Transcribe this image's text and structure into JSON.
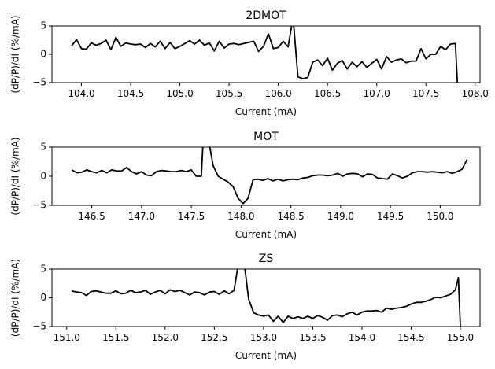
{
  "chart_data": [
    {
      "type": "line",
      "title": "2DMOT",
      "xlabel": "Current (mA)",
      "ylabel": "(dP/P)/dI (%/mA)",
      "xlim": [
        103.7,
        108.05
      ],
      "ylim": [
        -5,
        5
      ],
      "xticks": [
        104.0,
        104.5,
        105.0,
        105.5,
        106.0,
        106.5,
        107.0,
        107.5,
        108.0
      ],
      "xtick_labels": [
        "104.0",
        "104.5",
        "105.0",
        "105.5",
        "106.0",
        "106.5",
        "107.0",
        "107.5",
        "108.0"
      ],
      "yticks": [
        -5,
        0,
        5
      ],
      "ytick_labels": [
        "−5",
        "0",
        "5"
      ],
      "color": "#000000",
      "x": [
        103.9,
        103.95,
        104.0,
        104.05,
        104.1,
        104.15,
        104.2,
        104.25,
        104.3,
        104.35,
        104.4,
        104.45,
        104.5,
        104.55,
        104.6,
        104.65,
        104.7,
        104.75,
        104.8,
        104.85,
        104.9,
        104.95,
        105.0,
        105.05,
        105.1,
        105.15,
        105.2,
        105.25,
        105.3,
        105.35,
        105.4,
        105.45,
        105.5,
        105.55,
        105.6,
        105.65,
        105.7,
        105.75,
        105.8,
        105.85,
        105.9,
        105.95,
        106.0,
        106.05,
        106.1,
        106.15,
        106.2,
        106.25,
        106.3,
        106.35,
        106.4,
        106.45,
        106.5,
        106.55,
        106.6,
        106.65,
        106.7,
        106.75,
        106.8,
        106.85,
        106.9,
        106.95,
        107.0,
        107.05,
        107.1,
        107.15,
        107.2,
        107.25,
        107.3,
        107.35,
        107.4,
        107.45,
        107.5,
        107.55,
        107.6,
        107.65,
        107.7,
        107.75,
        107.8,
        107.82
      ],
      "y": [
        1.5,
        2.6,
        1.0,
        0.9,
        2.0,
        1.6,
        1.9,
        2.5,
        0.8,
        3.0,
        1.4,
        2.0,
        1.8,
        1.7,
        1.8,
        1.2,
        1.9,
        1.3,
        2.3,
        1.0,
        2.1,
        1.0,
        1.4,
        1.9,
        2.4,
        1.8,
        2.5,
        1.6,
        2.0,
        0.6,
        2.3,
        1.1,
        1.8,
        1.9,
        1.7,
        1.9,
        2.1,
        2.3,
        0.5,
        1.4,
        3.6,
        1.0,
        1.2,
        2.3,
        1.3,
        6.5,
        -4.0,
        -4.3,
        -4.1,
        -1.4,
        -1.0,
        -2.0,
        -0.7,
        -2.8,
        -1.6,
        -1.1,
        -2.6,
        -1.4,
        -2.2,
        -1.3,
        -2.3,
        -1.6,
        -0.9,
        -2.6,
        -0.4,
        -1.4,
        -1.0,
        -0.8,
        -1.5,
        -1.2,
        -1.2,
        1.0,
        -0.8,
        0.0,
        0.0,
        1.4,
        0.8,
        1.8,
        1.9,
        -5.0
      ],
      "series_points_note": ""
    },
    {
      "type": "line",
      "title": "MOT",
      "xlabel": "Current (mA)",
      "ylabel": "(dP/P)/dI (%/mA)",
      "xlim": [
        146.1,
        150.4
      ],
      "ylim": [
        -5,
        5
      ],
      "xticks": [
        146.5,
        147.0,
        147.5,
        148.0,
        148.5,
        149.0,
        149.5,
        150.0
      ],
      "xtick_labels": [
        "146.5",
        "147.0",
        "147.5",
        "148.0",
        "148.5",
        "149.0",
        "149.5",
        "150.0"
      ],
      "yticks": [
        -5,
        0,
        5
      ],
      "ytick_labels": [
        "−5",
        "0",
        "5"
      ],
      "color": "#000000",
      "x": [
        146.3,
        146.35,
        146.4,
        146.45,
        146.5,
        146.55,
        146.6,
        146.65,
        146.7,
        146.75,
        146.8,
        146.85,
        146.9,
        146.95,
        147.0,
        147.05,
        147.1,
        147.15,
        147.2,
        147.25,
        147.3,
        147.35,
        147.4,
        147.45,
        147.5,
        147.55,
        147.6,
        147.62,
        147.67,
        147.72,
        147.77,
        147.82,
        147.87,
        147.92,
        147.97,
        148.02,
        148.07,
        148.12,
        148.17,
        148.22,
        148.27,
        148.32,
        148.37,
        148.42,
        148.47,
        148.52,
        148.57,
        148.62,
        148.67,
        148.72,
        148.77,
        148.82,
        148.87,
        148.92,
        148.97,
        149.02,
        149.07,
        149.12,
        149.17,
        149.22,
        149.27,
        149.32,
        149.37,
        149.42,
        149.47,
        149.52,
        149.57,
        149.62,
        149.67,
        149.72,
        149.77,
        149.82,
        149.87,
        149.92,
        149.97,
        150.02,
        150.07,
        150.12,
        150.17,
        150.22,
        150.27
      ],
      "y": [
        1.1,
        0.6,
        0.7,
        1.1,
        0.8,
        0.6,
        1.0,
        0.6,
        1.1,
        0.9,
        0.9,
        1.5,
        0.8,
        0.4,
        0.8,
        0.2,
        0.1,
        0.8,
        1.0,
        0.9,
        0.8,
        0.8,
        1.0,
        0.8,
        1.1,
        0.0,
        0.0,
        6.5,
        6.5,
        1.8,
        0.0,
        -0.5,
        -1.0,
        -1.8,
        -3.8,
        -4.7,
        -3.8,
        -0.6,
        -0.5,
        -0.7,
        -0.4,
        -0.8,
        -0.5,
        -0.8,
        -0.6,
        -0.5,
        -0.6,
        -0.3,
        -0.2,
        0.1,
        0.2,
        0.2,
        0.1,
        0.2,
        0.5,
        0.0,
        0.4,
        0.5,
        0.4,
        -0.1,
        0.4,
        0.3,
        -0.3,
        -0.4,
        -0.5,
        0.4,
        0.1,
        -0.3,
        0.0,
        0.6,
        0.8,
        0.8,
        0.7,
        0.8,
        0.7,
        0.6,
        0.8,
        0.5,
        0.8,
        1.2,
        2.9
      ],
      "series_points_note": ""
    },
    {
      "type": "line",
      "title": "ZS",
      "xlabel": "Current (mA)",
      "ylabel": "(dP/P)/dI (%/mA)",
      "xlim": [
        150.85,
        155.2
      ],
      "ylim": [
        -5,
        5
      ],
      "xticks": [
        151.0,
        151.5,
        152.0,
        152.5,
        153.0,
        153.5,
        154.0,
        154.5,
        155.0
      ],
      "xtick_labels": [
        "151.0",
        "151.5",
        "152.0",
        "152.5",
        "153.0",
        "153.5",
        "154.0",
        "154.5",
        "155.0"
      ],
      "yticks": [
        -5,
        0,
        5
      ],
      "ytick_labels": [
        "−5",
        "0",
        "5"
      ],
      "color": "#000000",
      "x": [
        151.05,
        151.1,
        151.15,
        151.2,
        151.25,
        151.3,
        151.35,
        151.4,
        151.45,
        151.5,
        151.55,
        151.6,
        151.65,
        151.7,
        151.75,
        151.8,
        151.85,
        151.9,
        151.95,
        152.0,
        152.05,
        152.1,
        152.15,
        152.2,
        152.25,
        152.3,
        152.35,
        152.4,
        152.45,
        152.5,
        152.55,
        152.6,
        152.65,
        152.7,
        152.75,
        152.8,
        152.85,
        152.9,
        152.95,
        153.0,
        153.05,
        153.1,
        153.15,
        153.2,
        153.25,
        153.3,
        153.35,
        153.4,
        153.45,
        153.5,
        153.55,
        153.6,
        153.65,
        153.7,
        153.75,
        153.8,
        153.85,
        153.9,
        153.95,
        154.0,
        154.05,
        154.1,
        154.15,
        154.2,
        154.25,
        154.3,
        154.35,
        154.4,
        154.45,
        154.5,
        154.55,
        154.6,
        154.65,
        154.7,
        154.75,
        154.8,
        154.85,
        154.9,
        154.95,
        154.98,
        155.0
      ],
      "y": [
        1.2,
        1.0,
        0.9,
        0.4,
        1.1,
        1.2,
        1.0,
        0.8,
        0.8,
        1.2,
        0.7,
        0.8,
        1.3,
        0.9,
        1.0,
        1.3,
        0.6,
        1.0,
        1.3,
        0.7,
        1.4,
        1.1,
        1.3,
        0.9,
        0.5,
        1.0,
        0.9,
        0.5,
        1.0,
        1.1,
        0.6,
        1.2,
        0.7,
        1.3,
        6.5,
        6.5,
        -0.3,
        -2.6,
        -3.0,
        -3.2,
        -3.0,
        -4.1,
        -3.2,
        -4.3,
        -3.2,
        -3.6,
        -3.3,
        -3.6,
        -3.2,
        -3.6,
        -3.1,
        -3.4,
        -3.9,
        -3.1,
        -3.0,
        -3.3,
        -2.8,
        -2.5,
        -3.0,
        -2.5,
        -2.3,
        -2.3,
        -2.2,
        -2.5,
        -1.8,
        -2.0,
        -1.8,
        -1.7,
        -1.5,
        -1.1,
        -0.8,
        -0.8,
        -0.6,
        -0.3,
        0.1,
        0.0,
        0.3,
        0.6,
        1.4,
        3.5,
        -5.0
      ],
      "series_points_note": ""
    }
  ]
}
